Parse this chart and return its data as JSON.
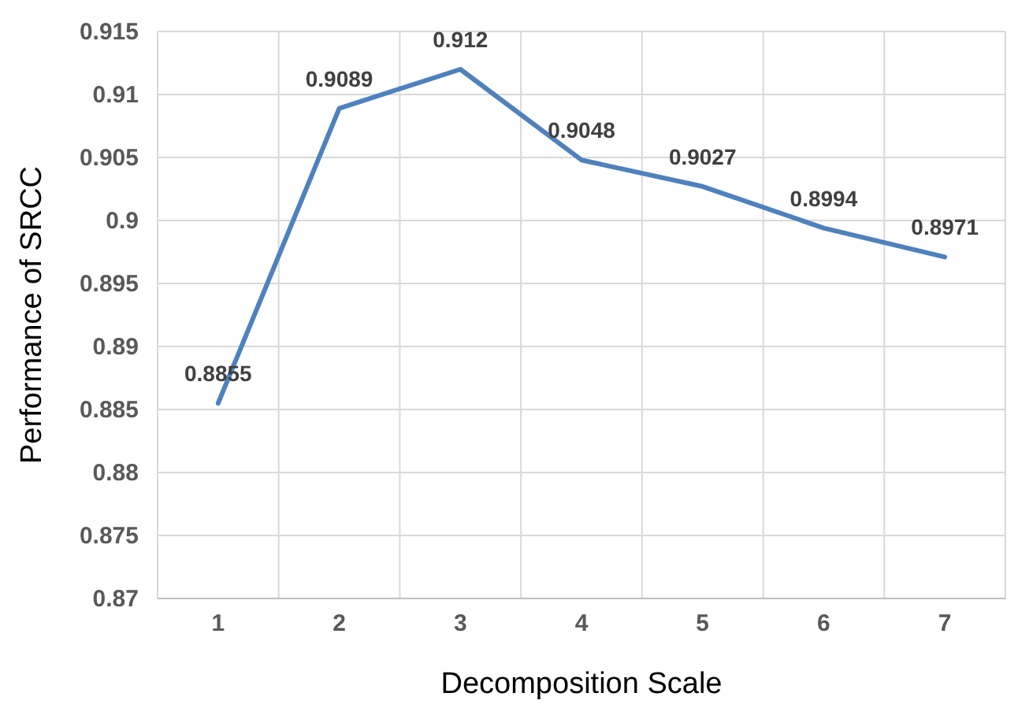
{
  "chart_data": {
    "type": "line",
    "xlabel": "Decomposition Scale",
    "ylabel": "Performance of SRCC",
    "categories": [
      "1",
      "2",
      "3",
      "4",
      "5",
      "6",
      "7"
    ],
    "series": [
      {
        "color": "#4f81bd",
        "values": [
          0.8855,
          0.9089,
          0.912,
          0.9048,
          0.9027,
          0.8994,
          0.8971
        ]
      }
    ],
    "ylim": [
      0.87,
      0.915
    ],
    "yticks": [
      0.87,
      0.875,
      0.88,
      0.885,
      0.89,
      0.895,
      0.9,
      0.905,
      0.91,
      0.915
    ],
    "grid": true,
    "data_labels": true,
    "marker": "none",
    "line_style": "solid"
  }
}
